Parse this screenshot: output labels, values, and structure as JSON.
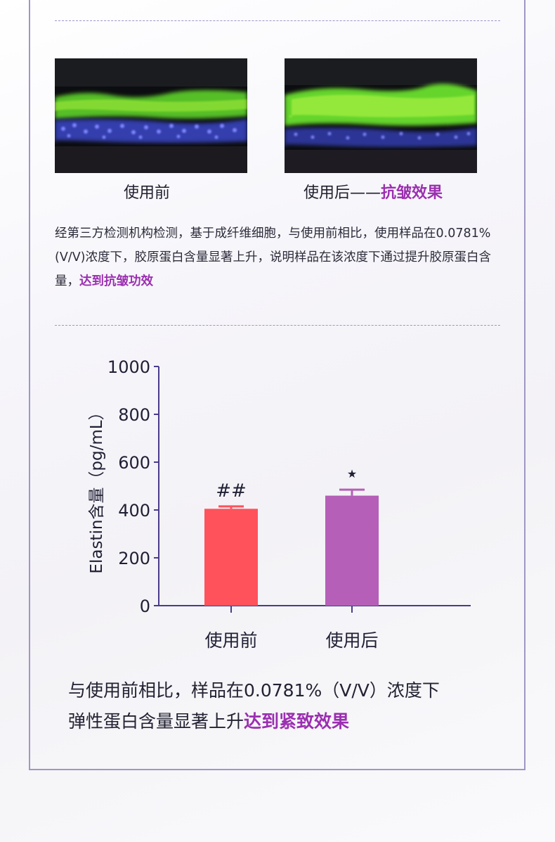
{
  "captions": {
    "before": "使用前",
    "after_prefix": "使用后——",
    "after_highlight": "抗皱效果"
  },
  "paragraph": {
    "text": "经第三方检测机构检测，基于成纤维细胞，与使用前相比，使用样品在0.0781% (V/V)浓度下，胶原蛋白含量显著上升，说明样品在该浓度下通过提升胶原蛋白含量，",
    "highlight": "达到抗皱功效"
  },
  "colors": {
    "highlight": "#9b2fb0",
    "bar_before": "#ff525b",
    "bar_after": "#b55fb8",
    "axis": "#4a3b8c",
    "frame": "#a096c4"
  },
  "chart_data": {
    "type": "bar",
    "categories": [
      "使用前",
      "使用后"
    ],
    "values": [
      405,
      460
    ],
    "errors": [
      10,
      25
    ],
    "annotations": [
      "##",
      "★"
    ],
    "title": "",
    "xlabel": "",
    "ylabel": "Elastin含量（pg/mL）",
    "ylim": [
      0,
      1000
    ],
    "yticks": [
      0,
      200,
      400,
      600,
      800,
      1000
    ],
    "colors": [
      "#ff525b",
      "#b55fb8"
    ],
    "grid": false
  },
  "summary": {
    "line1": "与使用前相比，样品在0.0781%（V/V）浓度下",
    "line2_prefix": "弹性蛋白含量显著上升",
    "line2_highlight": "达到紧致效果"
  }
}
